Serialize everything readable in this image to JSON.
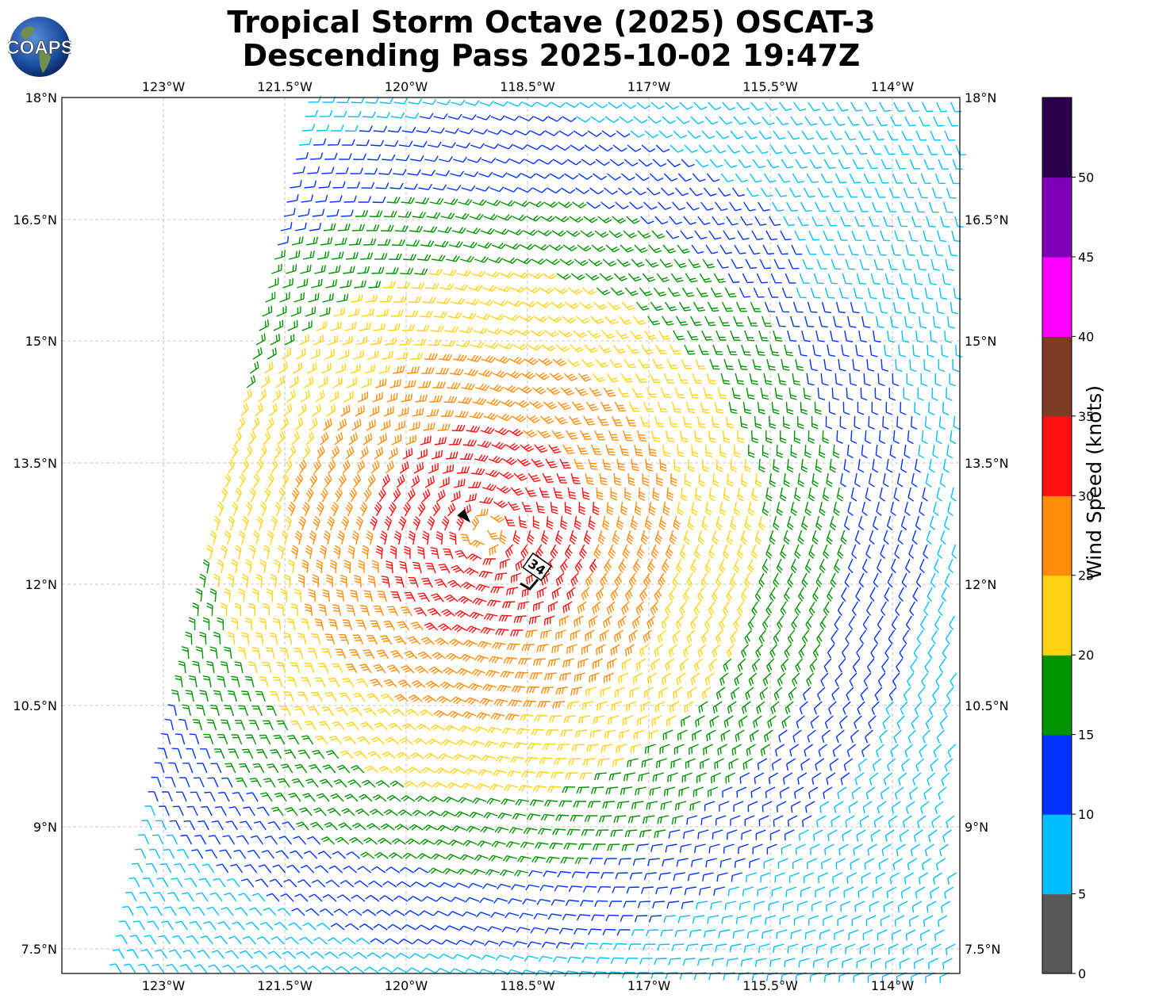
{
  "title": {
    "line1": "Tropical Storm Octave (2025) OSCAT-3",
    "line2": "Descending Pass 2025-10-02 19:47Z"
  },
  "logo": {
    "text": "COAPS"
  },
  "map": {
    "lon_ticks": [
      "123°W",
      "121.5°W",
      "120°W",
      "118.5°W",
      "117°W",
      "115.5°W",
      "114°W"
    ],
    "lat_ticks": [
      "18°N",
      "16.5°N",
      "15°N",
      "13.5°N",
      "12°N",
      "10.5°N",
      "9°N",
      "7.5°N"
    ],
    "grid": true
  },
  "annotations": {
    "wind_radius_label": "34"
  },
  "colorbar": {
    "label": "Wind Speed (knots)",
    "ticks": [
      "0",
      "5",
      "10",
      "15",
      "20",
      "25",
      "30",
      "35",
      "40",
      "45",
      "50"
    ],
    "colors": [
      "#585858",
      "#00bfff",
      "#0033ff",
      "#009400",
      "#ffd211",
      "#ff8c0b",
      "#ff0f0f",
      "#7f3c25",
      "#ff00ff",
      "#7f00bb",
      "#2d004f"
    ]
  }
}
